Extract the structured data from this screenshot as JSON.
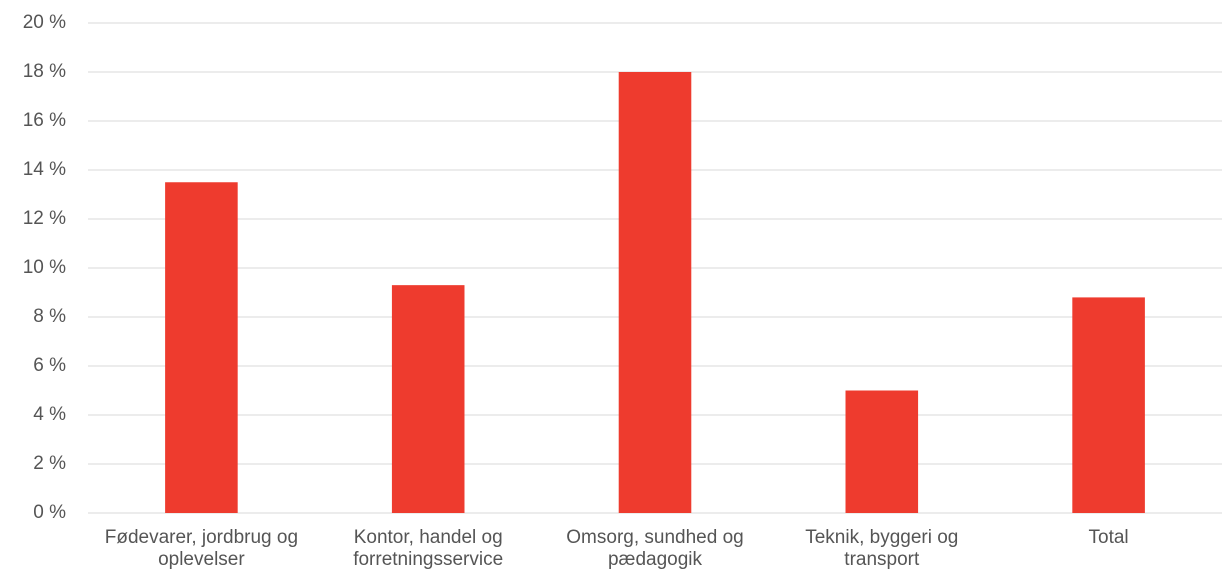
{
  "chart_data": {
    "type": "bar",
    "categories": [
      "Fødevarer, jordbrug og oplevelser",
      "Kontor, handel og forretningsservice",
      "Omsorg, sundhed og pædagogik",
      "Teknik, byggeri og transport",
      "Total"
    ],
    "values": [
      13.5,
      9.3,
      18.0,
      5.0,
      8.8
    ],
    "color": "#ee3b2e",
    "ylim": [
      0,
      20
    ],
    "yticks": [
      {
        "value": 0,
        "label": "0 %"
      },
      {
        "value": 2,
        "label": "2 %"
      },
      {
        "value": 4,
        "label": "4 %"
      },
      {
        "value": 6,
        "label": "6 %"
      },
      {
        "value": 8,
        "label": "8 %"
      },
      {
        "value": 10,
        "label": "10 %"
      },
      {
        "value": 12,
        "label": "12 %"
      },
      {
        "value": 14,
        "label": "14 %"
      },
      {
        "value": 16,
        "label": "16 %"
      },
      {
        "value": 18,
        "label": "18 %"
      },
      {
        "value": 20,
        "label": "20 %"
      }
    ],
    "grid": true
  }
}
